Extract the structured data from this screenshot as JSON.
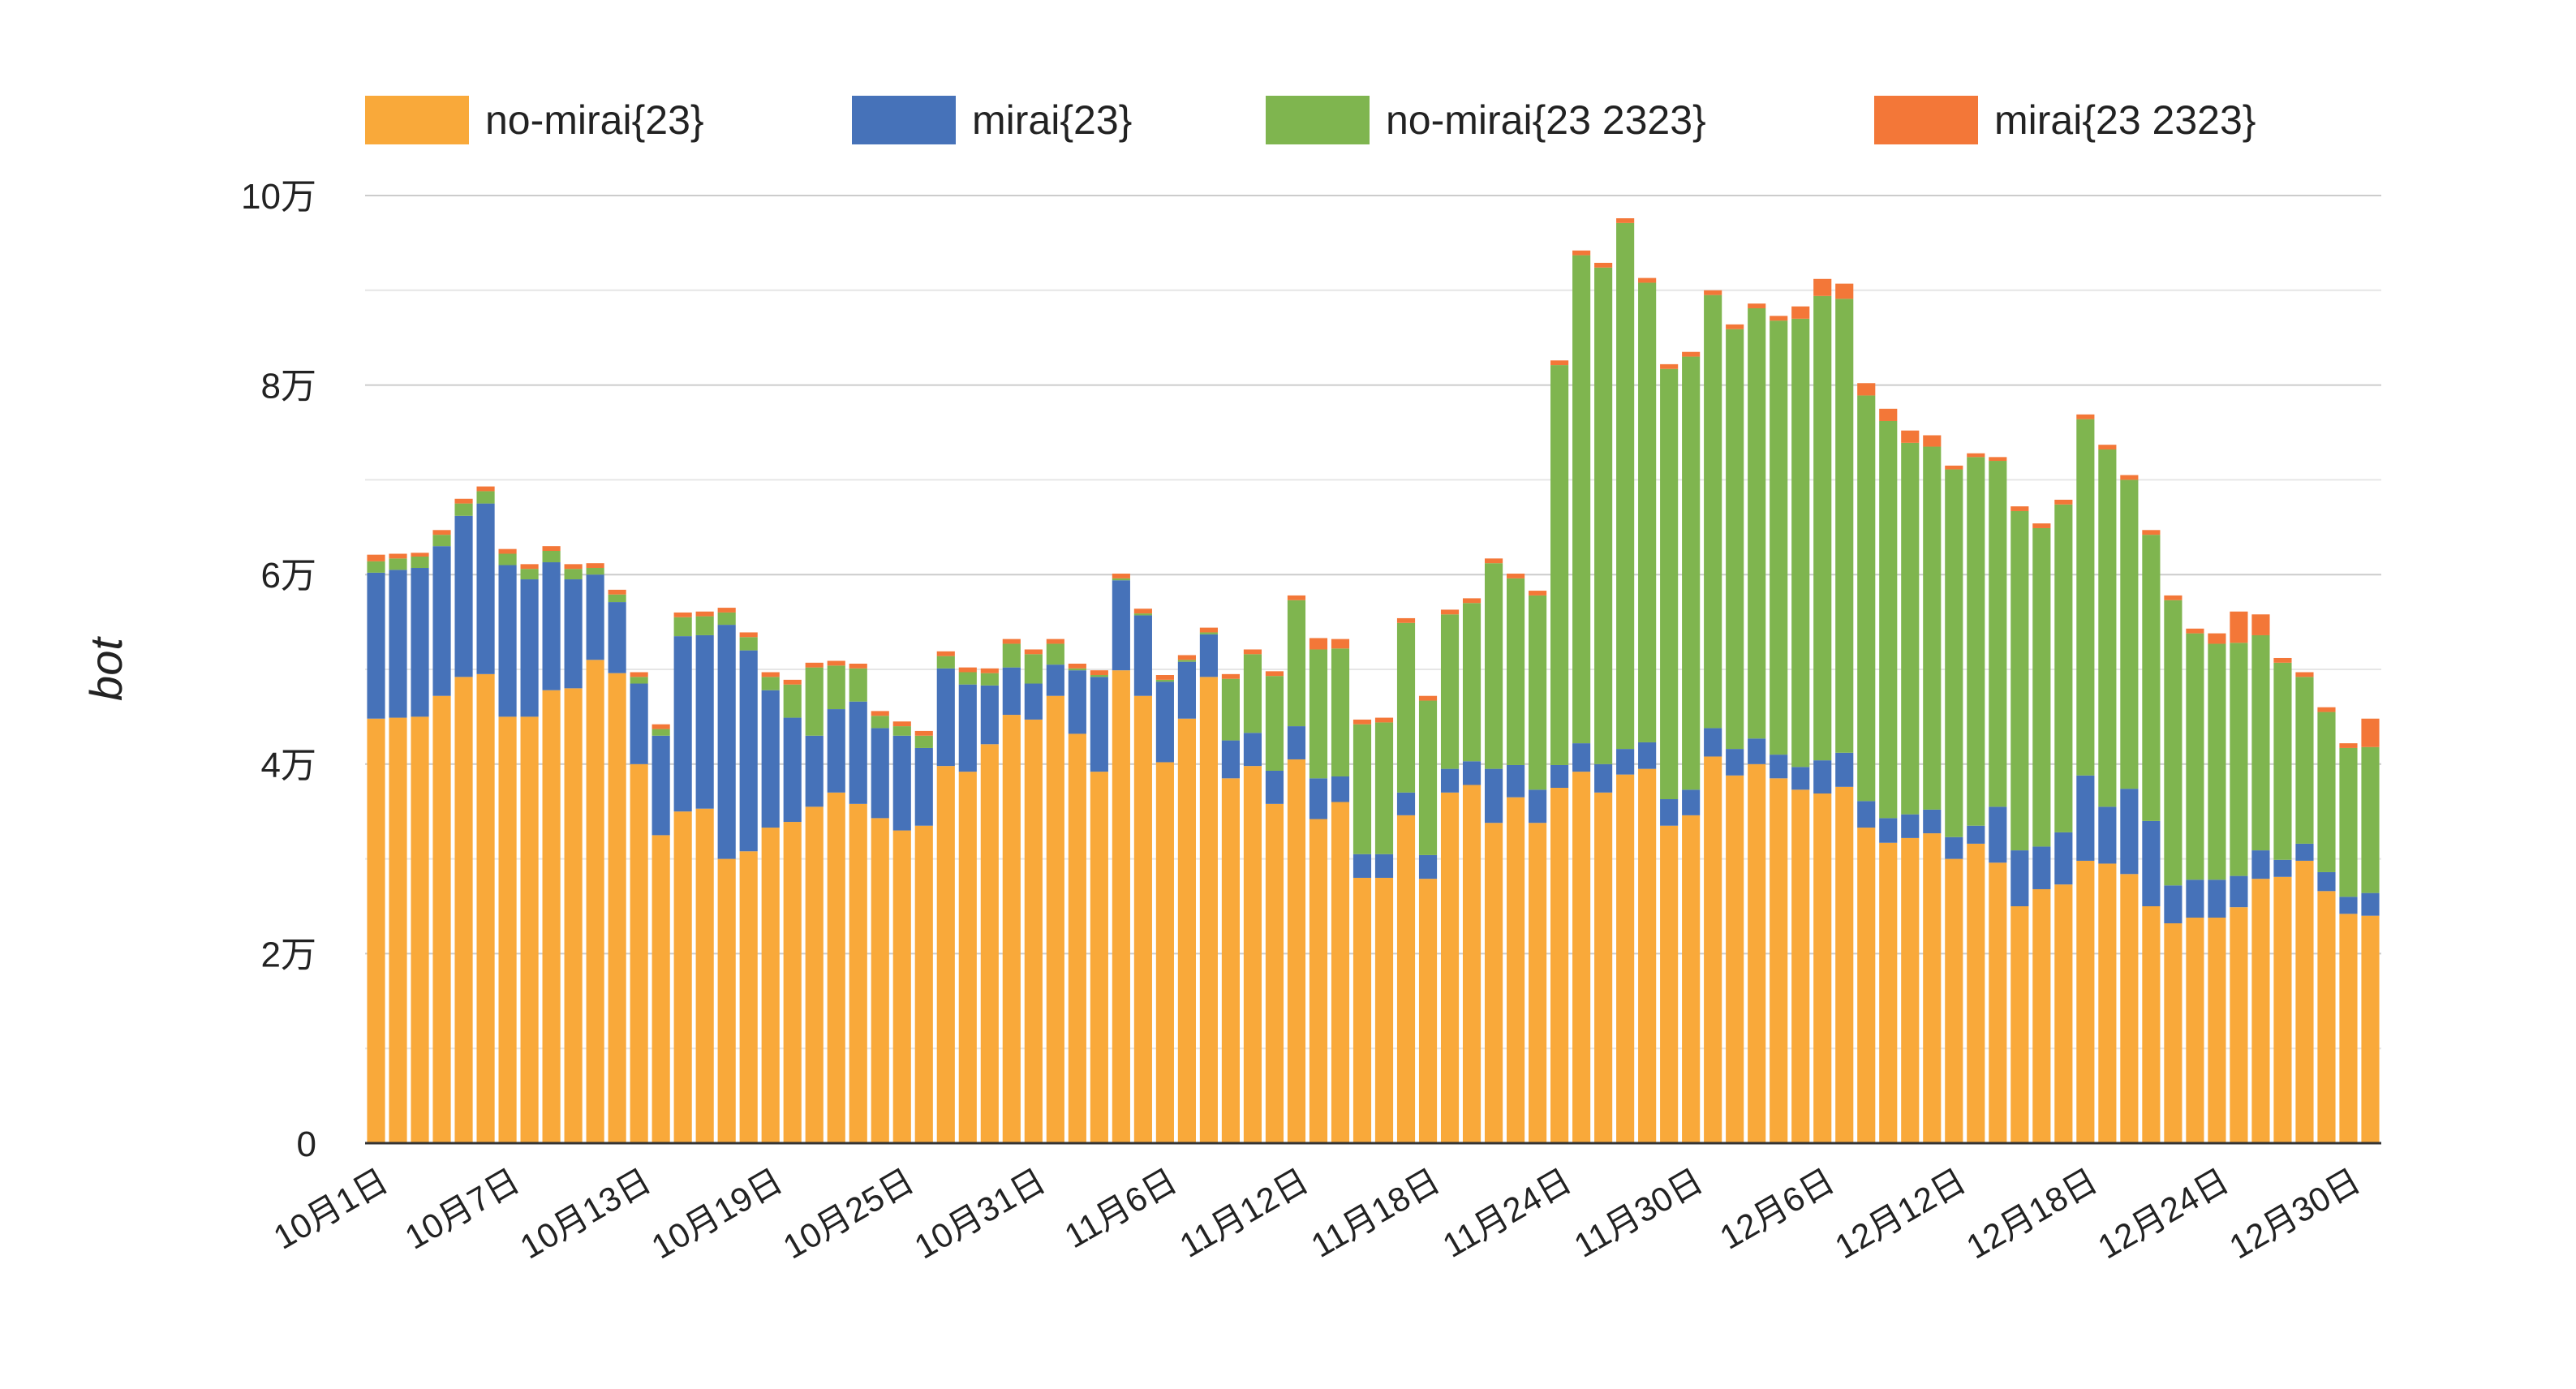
{
  "chart_data": {
    "type": "bar",
    "stacked": true,
    "ylabel": "bot",
    "ylim": [
      0,
      100000
    ],
    "yticks": [
      {
        "value": 0,
        "label": "0"
      },
      {
        "value": 20000,
        "label": "2万"
      },
      {
        "value": 40000,
        "label": "4万"
      },
      {
        "value": 60000,
        "label": "6万"
      },
      {
        "value": 80000,
        "label": "8万"
      },
      {
        "value": 100000,
        "label": "10万"
      }
    ],
    "legend_position": "top",
    "grid": true,
    "categories": [
      "10月1日",
      "10月2日",
      "10月3日",
      "10月4日",
      "10月5日",
      "10月6日",
      "10月7日",
      "10月8日",
      "10月9日",
      "10月10日",
      "10月11日",
      "10月12日",
      "10月13日",
      "10月14日",
      "10月15日",
      "10月16日",
      "10月17日",
      "10月18日",
      "10月19日",
      "10月20日",
      "10月21日",
      "10月22日",
      "10月23日",
      "10月24日",
      "10月25日",
      "10月26日",
      "10月27日",
      "10月28日",
      "10月29日",
      "10月30日",
      "10月31日",
      "11月1日",
      "11月2日",
      "11月3日",
      "11月4日",
      "11月5日",
      "11月6日",
      "11月7日",
      "11月8日",
      "11月9日",
      "11月10日",
      "11月11日",
      "11月12日",
      "11月13日",
      "11月14日",
      "11月15日",
      "11月16日",
      "11月17日",
      "11月18日",
      "11月19日",
      "11月20日",
      "11月21日",
      "11月22日",
      "11月23日",
      "11月24日",
      "11月25日",
      "11月26日",
      "11月27日",
      "11月28日",
      "11月29日",
      "11月30日",
      "12月1日",
      "12月2日",
      "12月3日",
      "12月4日",
      "12月5日",
      "12月6日",
      "12月7日",
      "12月8日",
      "12月9日",
      "12月10日",
      "12月11日",
      "12月12日",
      "12月13日",
      "12月14日",
      "12月15日",
      "12月16日",
      "12月17日",
      "12月18日",
      "12月19日",
      "12月20日",
      "12月21日",
      "12月22日",
      "12月23日",
      "12月24日",
      "12月25日",
      "12月26日",
      "12月27日",
      "12月28日",
      "12月29日",
      "12月30日",
      "12月31日"
    ],
    "x_tick_labels": [
      "10月1日",
      "10月7日",
      "10月13日",
      "10月19日",
      "10月25日",
      "10月31日",
      "11月6日",
      "11月12日",
      "11月18日",
      "11月24日",
      "11月30日",
      "12月6日",
      "12月12日",
      "12月18日",
      "12月24日",
      "12月30日"
    ],
    "series": [
      {
        "name": "no-mirai{23}",
        "color": "#f9a93a",
        "values": [
          44800,
          44900,
          45000,
          47200,
          49200,
          49500,
          45000,
          45000,
          47800,
          48000,
          51000,
          49600,
          40000,
          32500,
          35000,
          35300,
          30000,
          30800,
          33300,
          33900,
          35500,
          37000,
          35800,
          34300,
          33000,
          33500,
          39800,
          39200,
          42100,
          45200,
          44700,
          47200,
          43200,
          39200,
          49900,
          47200,
          40200,
          44800,
          49200,
          38500,
          39800,
          35800,
          40500,
          34200,
          36000,
          28000,
          28000,
          34600,
          27900,
          37000,
          37800,
          33800,
          36500,
          33800,
          37500,
          39200,
          37000,
          38900,
          39500,
          33500,
          34600,
          40800,
          38800,
          40000,
          38500,
          37300,
          36900,
          37600,
          33300,
          31700,
          32200,
          32700,
          30000,
          31600,
          29600,
          25000,
          26800,
          27300,
          29800,
          29500,
          28400,
          25000,
          23200,
          23800,
          23800,
          24900,
          27900,
          28100,
          29800,
          26600,
          24200,
          24000
        ]
      },
      {
        "name": "mirai{23}",
        "color": "#4672b9",
        "values": [
          15400,
          15600,
          15700,
          15800,
          17000,
          18000,
          16000,
          14500,
          13500,
          11500,
          9000,
          7500,
          8500,
          10500,
          18500,
          18300,
          24700,
          21200,
          14500,
          11000,
          7500,
          8800,
          10800,
          9500,
          10000,
          8200,
          10300,
          9200,
          6200,
          5000,
          3800,
          3300,
          6700,
          10000,
          9500,
          8500,
          8500,
          6000,
          4500,
          4000,
          3500,
          3500,
          3500,
          4300,
          2700,
          2500,
          2500,
          2400,
          2500,
          2500,
          2500,
          5700,
          3400,
          3500,
          2400,
          3000,
          3000,
          2700,
          2800,
          2800,
          2700,
          3000,
          2800,
          2700,
          2500,
          2400,
          3500,
          3600,
          2800,
          2600,
          2500,
          2500,
          2300,
          1900,
          5900,
          5900,
          4500,
          5500,
          9000,
          6000,
          9000,
          9000,
          4000,
          4000,
          4000,
          3300,
          3000,
          1800,
          1800,
          2000,
          1800,
          2400
        ]
      },
      {
        "name": "no-mirai{23 2323}",
        "color": "#7fb54f",
        "values": [
          1200,
          1200,
          1200,
          1200,
          1300,
          1300,
          1200,
          1100,
          1200,
          1100,
          700,
          800,
          700,
          700,
          2000,
          2000,
          1300,
          1400,
          1400,
          3500,
          7200,
          4600,
          3500,
          1300,
          1000,
          1300,
          1300,
          1300,
          1300,
          2500,
          3100,
          2200,
          200,
          200,
          200,
          200,
          200,
          200,
          200,
          6500,
          8300,
          10000,
          13300,
          13600,
          13500,
          13700,
          13900,
          17900,
          16300,
          16300,
          16700,
          21700,
          19700,
          20500,
          42200,
          51500,
          52400,
          55500,
          48500,
          45400,
          45700,
          45700,
          44300,
          45400,
          45800,
          47300,
          49000,
          47900,
          42800,
          41900,
          39200,
          38300,
          38800,
          38900,
          36500,
          35800,
          33600,
          34600,
          37600,
          37700,
          32600,
          30200,
          30100,
          26000,
          24900,
          24600,
          22700,
          20800,
          17600,
          16900,
          15700,
          15400
        ]
      },
      {
        "name": "mirai{23 2323}",
        "color": "#f37738",
        "values": [
          700,
          500,
          400,
          500,
          500,
          500,
          500,
          500,
          500,
          500,
          500,
          500,
          500,
          500,
          500,
          500,
          500,
          500,
          500,
          500,
          500,
          500,
          500,
          500,
          500,
          500,
          500,
          500,
          500,
          500,
          500,
          500,
          500,
          500,
          500,
          500,
          500,
          500,
          500,
          500,
          500,
          500,
          500,
          1200,
          1000,
          500,
          500,
          500,
          500,
          500,
          500,
          500,
          500,
          500,
          500,
          500,
          500,
          500,
          500,
          500,
          500,
          500,
          500,
          500,
          500,
          1300,
          1800,
          1600,
          1300,
          1300,
          1300,
          1200,
          400,
          400,
          400,
          500,
          500,
          500,
          500,
          500,
          500,
          500,
          500,
          500,
          1100,
          3300,
          2200,
          500,
          500,
          500,
          500,
          3000
        ]
      }
    ]
  }
}
